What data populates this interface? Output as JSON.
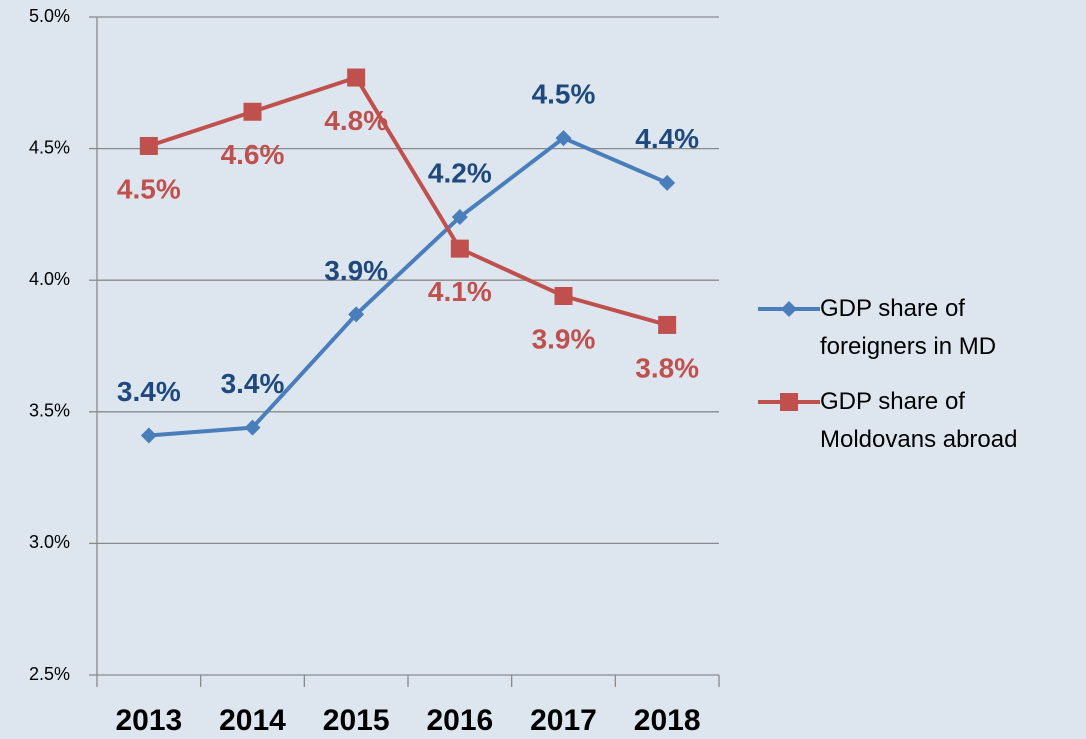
{
  "chart_data": {
    "type": "line",
    "categories": [
      "2013",
      "2014",
      "2015",
      "2016",
      "2017",
      "2018"
    ],
    "series": [
      {
        "name": "GDP share of foreigners in MD",
        "color": "#4a7ebb",
        "label_color": "#1f497d",
        "marker": "diamond",
        "values": [
          3.41,
          3.44,
          3.87,
          4.24,
          4.54,
          4.37
        ],
        "value_labels": [
          "3.4%",
          "3.4%",
          "3.9%",
          "4.2%",
          "4.5%",
          "4.4%"
        ]
      },
      {
        "name": "GDP share of Moldovans abroad",
        "color": "#c0504d",
        "label_color": "#c0504d",
        "marker": "square",
        "values": [
          4.51,
          4.64,
          4.77,
          4.12,
          3.94,
          3.83
        ],
        "value_labels": [
          "4.5%",
          "4.6%",
          "4.8%",
          "4.1%",
          "3.9%",
          "3.8%"
        ]
      }
    ],
    "ylim": [
      2.5,
      5.0
    ],
    "yticks": [
      {
        "value": 2.5,
        "label": "2.5%"
      },
      {
        "value": 3.0,
        "label": "3.0%"
      },
      {
        "value": 3.5,
        "label": "3.5%"
      },
      {
        "value": 4.0,
        "label": "4.0%"
      },
      {
        "value": 4.5,
        "label": "4.5%"
      },
      {
        "value": 5.0,
        "label": "5.0%"
      }
    ],
    "grid": true,
    "legend": "right"
  }
}
